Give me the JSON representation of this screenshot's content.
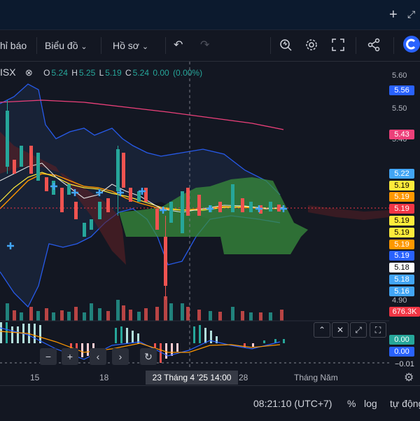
{
  "toolbar": {
    "alerts_label": "hỉ báo",
    "chart_label": "Biểu đồ",
    "profile_label": "Hồ sơ"
  },
  "legend": {
    "symbol": "ISX",
    "o_label": "O",
    "o": "5.24",
    "h_label": "H",
    "h": "5.25",
    "l_label": "L",
    "l": "5.19",
    "c_label": "C",
    "c": "5.24",
    "change": "0.00",
    "change_pct": "(0.00%)"
  },
  "price_axis": {
    "ticks": [
      "5.60",
      "5.50",
      "5.40",
      "4.90"
    ],
    "tags": [
      {
        "value": "5.56",
        "bg": "#2962ff",
        "fg": "#ffffff"
      },
      {
        "value": "5.43",
        "bg": "#ec407a",
        "fg": "#ffffff"
      },
      {
        "value": "5.22",
        "bg": "#42a5f5",
        "fg": "#ffffff"
      },
      {
        "value": "5.19",
        "bg": "#ffeb3b",
        "fg": "#000000"
      },
      {
        "value": "5.19",
        "bg": "#ff9800",
        "fg": "#ffffff"
      },
      {
        "value": "5.19",
        "bg": "#f23645",
        "fg": "#ffffff"
      },
      {
        "value": "5.19",
        "bg": "#ffeb3b",
        "fg": "#000000"
      },
      {
        "value": "5.19",
        "bg": "#ffeb3b",
        "fg": "#000000"
      },
      {
        "value": "5.19",
        "bg": "#ff9800",
        "fg": "#ffffff"
      },
      {
        "value": "5.19",
        "bg": "#2962ff",
        "fg": "#ffffff"
      },
      {
        "value": "5.18",
        "bg": "#ffffff",
        "fg": "#000000"
      },
      {
        "value": "5.18",
        "bg": "#42a5f5",
        "fg": "#ffffff"
      },
      {
        "value": "5.16",
        "bg": "#42a5f5",
        "fg": "#ffffff"
      },
      {
        "value": "676.3K",
        "bg": "#f23645",
        "fg": "#ffffff"
      }
    ],
    "osc_tags": [
      {
        "value": "0.00",
        "bg": "#26a69a",
        "fg": "#ffffff"
      },
      {
        "value": "0.00",
        "bg": "#2962ff",
        "fg": "#ffffff"
      }
    ],
    "osc_tick": "−0.01"
  },
  "time_axis": {
    "labels": [
      "15",
      "18",
      "28",
      "Tháng Năm"
    ],
    "crosshair": "23 Tháng 4 '25   14:00"
  },
  "bottom": {
    "clock": "08:21:10 (UTC+7)",
    "percent": "%",
    "log": "log",
    "auto": "tự động"
  },
  "colors": {
    "up": "#26a69a",
    "down": "#ef5350",
    "bg": "#131722",
    "cloud_green": "#4caf50",
    "bollinger": "#2962ff"
  }
}
